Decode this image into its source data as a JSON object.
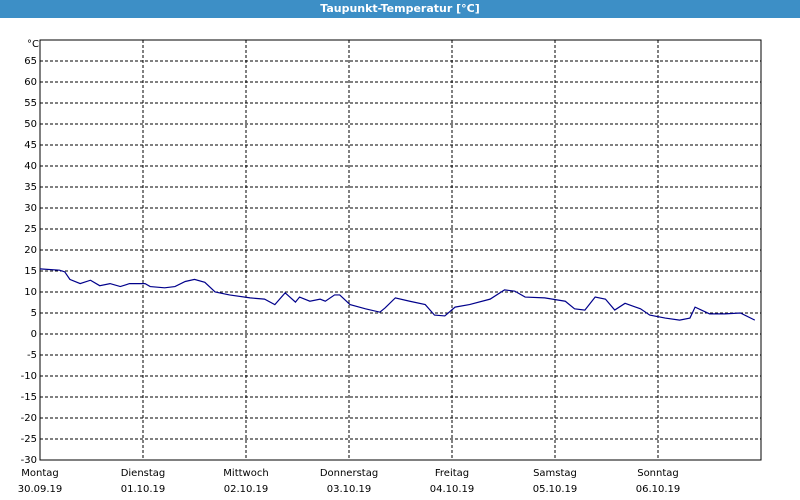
{
  "chart_data": {
    "type": "line",
    "title": "Taupunkt-Temperatur [°C]",
    "y_unit": "°C",
    "xlim": [
      0,
      7
    ],
    "xticks": [
      {
        "value": 0,
        "label": [
          "Montag",
          "30.09.19"
        ]
      },
      {
        "value": 1,
        "label": [
          "Dienstag",
          "01.10.19"
        ]
      },
      {
        "value": 2,
        "label": [
          "Mittwoch",
          "02.10.19"
        ]
      },
      {
        "value": 3,
        "label": [
          "Donnerstag",
          "03.10.19"
        ]
      },
      {
        "value": 4,
        "label": [
          "Freitag",
          "04.10.19"
        ]
      },
      {
        "value": 5,
        "label": [
          "Samstag",
          "05.10.19"
        ]
      },
      {
        "value": 6,
        "label": [
          "Sonntag",
          "06.10.19"
        ]
      }
    ],
    "ylim": [
      -30,
      70
    ],
    "yticks": [
      -30,
      -25,
      -20,
      -15,
      -10,
      -5,
      0,
      5,
      10,
      15,
      20,
      25,
      30,
      35,
      40,
      45,
      50,
      55,
      60,
      65
    ],
    "grid": true,
    "series": [
      {
        "color": "#00008b",
        "x": [
          0,
          0.19,
          0.24,
          0.29,
          0.39,
          0.49,
          0.58,
          0.68,
          0.78,
          0.87,
          1.02,
          1.07,
          1.21,
          1.31,
          1.41,
          1.5,
          1.6,
          1.7,
          1.84,
          2.04,
          2.18,
          2.28,
          2.38,
          2.48,
          2.52,
          2.62,
          2.72,
          2.77,
          2.86,
          2.91,
          3.01,
          3.16,
          3.3,
          3.35,
          3.45,
          3.59,
          3.74,
          3.83,
          3.93,
          4.03,
          4.17,
          4.37,
          4.51,
          4.61,
          4.71,
          4.9,
          5.1,
          5.19,
          5.29,
          5.39,
          5.49,
          5.58,
          5.68,
          5.83,
          5.92,
          6.07,
          6.21,
          6.31,
          6.36,
          6.5,
          6.65,
          6.8,
          6.94
        ],
        "values": [
          15.5,
          15.2,
          14.8,
          13,
          12,
          12.8,
          11.5,
          12,
          11.3,
          12,
          12,
          11.3,
          11,
          11.3,
          12.5,
          13,
          12.3,
          10,
          9.3,
          8.6,
          8.3,
          7,
          9.8,
          7.6,
          8.8,
          7.8,
          8.3,
          7.8,
          9.3,
          9.3,
          7,
          6,
          5.2,
          6.2,
          8.6,
          7.8,
          7,
          4.5,
          4.3,
          6.4,
          7,
          8.3,
          10.5,
          10.2,
          8.8,
          8.6,
          7.8,
          6,
          5.7,
          8.8,
          8.3,
          5.7,
          7.3,
          6,
          4.5,
          3.8,
          3.3,
          3.8,
          6.4,
          4.8,
          4.8,
          5,
          3.3
        ]
      }
    ]
  }
}
